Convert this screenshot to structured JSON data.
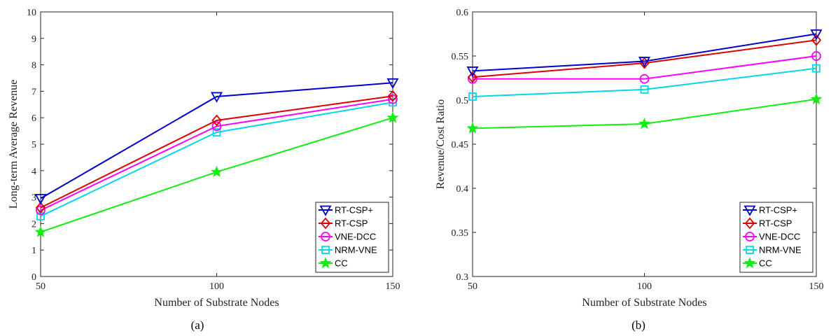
{
  "chart_data": [
    {
      "type": "line",
      "panel_label": "a",
      "xlabel": "Number of Substrate Nodes",
      "ylabel": "Long-term Average Revenue",
      "x": [
        50,
        100,
        150
      ],
      "xlim": [
        50,
        150
      ],
      "ylim": [
        0,
        10
      ],
      "xticks": [
        50,
        100,
        150
      ],
      "yticks": [
        0,
        1,
        2,
        3,
        4,
        5,
        6,
        7,
        8,
        9,
        10
      ],
      "grid": false,
      "legend_position": "bottom-right",
      "series": [
        {
          "name": "RT-CSP+",
          "values": [
            2.95,
            6.8,
            7.32
          ],
          "color": "#0000cc",
          "marker": "triangle-down"
        },
        {
          "name": "RT-CSP",
          "values": [
            2.6,
            5.9,
            6.82
          ],
          "color": "#dd0000",
          "marker": "diamond"
        },
        {
          "name": "VNE-DCC",
          "values": [
            2.5,
            5.68,
            6.7
          ],
          "color": "#ff00ff",
          "marker": "circle"
        },
        {
          "name": "NRM-VNE",
          "values": [
            2.28,
            5.45,
            6.58
          ],
          "color": "#00d8e8",
          "marker": "square"
        },
        {
          "name": "CC",
          "values": [
            1.68,
            3.95,
            6.0
          ],
          "color": "#11ee11",
          "marker": "star"
        }
      ]
    },
    {
      "type": "line",
      "panel_label": "b",
      "xlabel": "Number of Substrate Nodes",
      "ylabel": "Revenue/Cost Ratio",
      "x": [
        50,
        100,
        150
      ],
      "xlim": [
        50,
        150
      ],
      "ylim": [
        0.3,
        0.6
      ],
      "xticks": [
        50,
        100,
        150
      ],
      "yticks": [
        0.3,
        0.35,
        0.4,
        0.45,
        0.5,
        0.55,
        0.6
      ],
      "grid": false,
      "legend_position": "bottom-right",
      "series": [
        {
          "name": "RT-CSP+",
          "values": [
            0.533,
            0.544,
            0.575
          ],
          "color": "#0000cc",
          "marker": "triangle-down"
        },
        {
          "name": "RT-CSP",
          "values": [
            0.526,
            0.542,
            0.568
          ],
          "color": "#dd0000",
          "marker": "diamond"
        },
        {
          "name": "VNE-DCC",
          "values": [
            0.524,
            0.524,
            0.55
          ],
          "color": "#ff00ff",
          "marker": "circle"
        },
        {
          "name": "NRM-VNE",
          "values": [
            0.504,
            0.512,
            0.536
          ],
          "color": "#00d8e8",
          "marker": "square"
        },
        {
          "name": "CC",
          "values": [
            0.468,
            0.473,
            0.501
          ],
          "color": "#11ee11",
          "marker": "star"
        }
      ]
    }
  ],
  "captions": [
    "(a)",
    "(b)"
  ]
}
